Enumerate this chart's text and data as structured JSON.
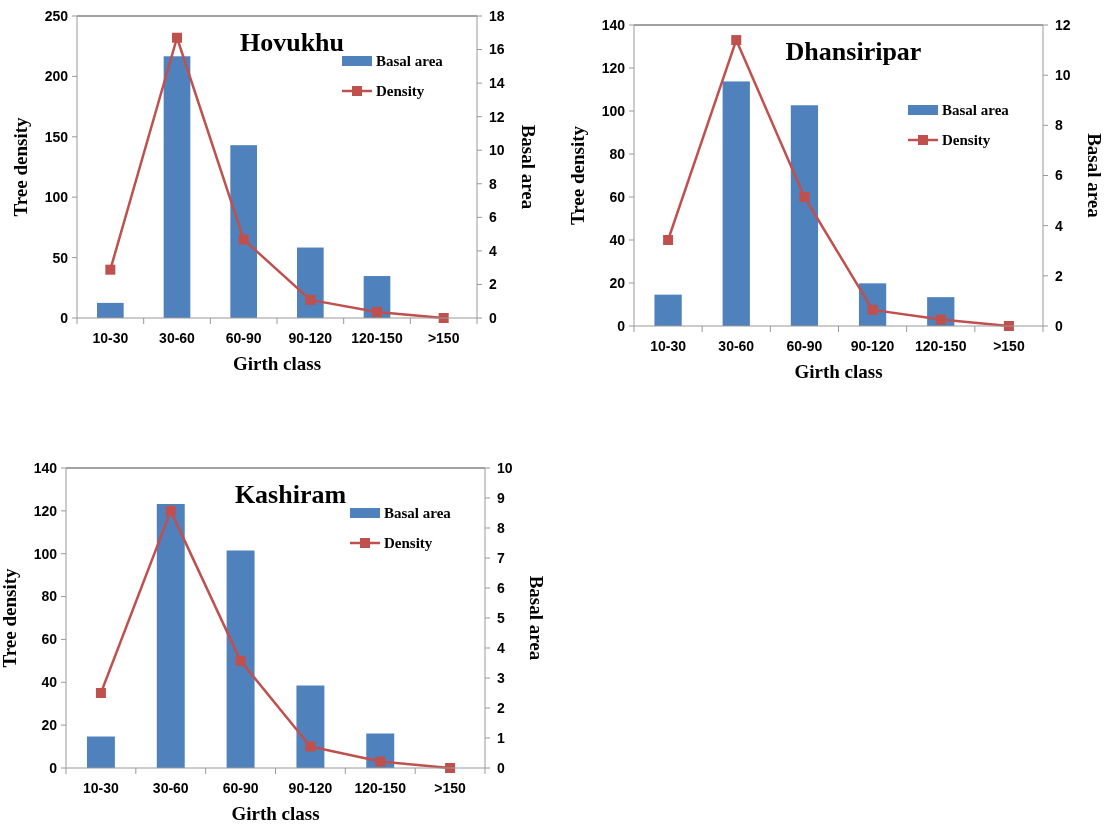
{
  "chart_data": [
    {
      "type": "bar",
      "title": "Hovukhu",
      "xlabel": "Girth class",
      "ylabel": "Tree density",
      "y2label": "Basal area",
      "categories": [
        "10-30",
        "30-60",
        "60-90",
        "90-120",
        "120-150",
        ">150"
      ],
      "series": [
        {
          "name": "Basal area",
          "axis": "y2",
          "color": "#4f81bd",
          "values": [
            0.9,
            15.6,
            10.3,
            4.2,
            2.5,
            null
          ]
        },
        {
          "name": "Density",
          "type": "line",
          "color": "#c0504d",
          "values": [
            40,
            232,
            65,
            15,
            5,
            0
          ]
        }
      ],
      "ylim": [
        0,
        250
      ],
      "yticks": [
        0,
        50,
        100,
        150,
        200,
        250
      ],
      "y2lim": [
        0,
        18
      ],
      "y2ticks": [
        0,
        2,
        4,
        6,
        8,
        10,
        12,
        14,
        16,
        18
      ],
      "legend": "top right",
      "marker": "square",
      "grid": false
    },
    {
      "type": "bar",
      "title": "Dhansiripar",
      "xlabel": "Girth class",
      "ylabel": "Tree density",
      "y2label": "Basal area",
      "categories": [
        "10-30",
        "30-60",
        "60-90",
        "90-120",
        "120-150",
        ">150"
      ],
      "series": [
        {
          "name": "Basal area",
          "axis": "y2",
          "color": "#4f81bd",
          "values": [
            1.25,
            9.75,
            8.8,
            1.7,
            1.15,
            null
          ]
        },
        {
          "name": "Density",
          "type": "line",
          "color": "#c0504d",
          "values": [
            40,
            133,
            60,
            7.5,
            3,
            0
          ]
        }
      ],
      "ylim": [
        0,
        140
      ],
      "yticks": [
        0,
        20,
        40,
        60,
        80,
        100,
        120,
        140
      ],
      "y2lim": [
        0,
        12
      ],
      "y2ticks": [
        0,
        2,
        4,
        6,
        8,
        10,
        12
      ],
      "legend": "right",
      "marker": "square",
      "grid": false
    },
    {
      "type": "bar",
      "title": "Kashiram",
      "xlabel": "Girth class",
      "ylabel": "Tree density",
      "y2label": "Basal area",
      "categories": [
        "10-30",
        "30-60",
        "60-90",
        "90-120",
        "120-150",
        ">150"
      ],
      "series": [
        {
          "name": "Basal area",
          "axis": "y2",
          "color": "#4f81bd",
          "values": [
            1.05,
            8.8,
            7.25,
            2.75,
            1.15,
            null
          ]
        },
        {
          "name": "Density",
          "type": "line",
          "color": "#c0504d",
          "values": [
            35,
            120,
            50,
            10,
            3,
            0
          ]
        }
      ],
      "ylim": [
        0,
        140
      ],
      "yticks": [
        0,
        20,
        40,
        60,
        80,
        100,
        120,
        140
      ],
      "y2lim": [
        0,
        10
      ],
      "y2ticks": [
        0,
        1,
        2,
        3,
        4,
        5,
        6,
        7,
        8,
        9,
        10
      ],
      "legend": "top right",
      "marker": "square",
      "grid": false
    }
  ]
}
